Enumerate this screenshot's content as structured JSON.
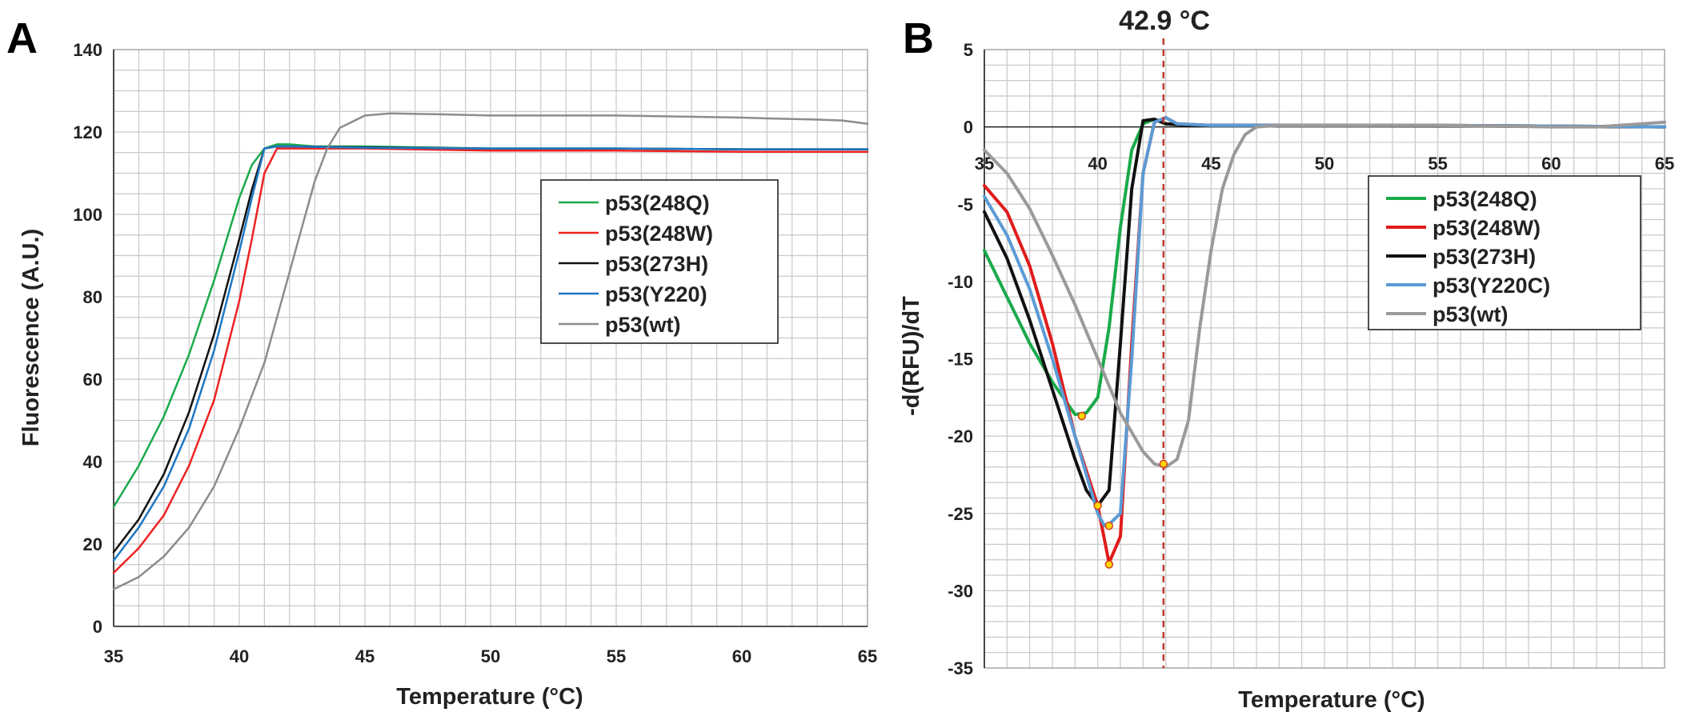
{
  "figure": {
    "panel_a_label": "A",
    "panel_b_label": "B",
    "annotation": "42.9 °C"
  },
  "chart_data": [
    {
      "type": "line",
      "panel": "A",
      "title": "",
      "xlabel": "Temperature (°C)",
      "ylabel": "Fluorescence (A.U.)",
      "xlim": [
        35,
        65
      ],
      "ylim": [
        0,
        140
      ],
      "xticks": [
        "35",
        "40",
        "45",
        "50",
        "55",
        "60",
        "65"
      ],
      "yticks": [
        "0",
        "20",
        "40",
        "60",
        "80",
        "100",
        "120",
        "140"
      ],
      "grid": true,
      "legend_position": "center-right",
      "series": [
        {
          "name": "p53(248Q)",
          "color": "#1aaa4a",
          "width": 2.5,
          "x": [
            35,
            36,
            37,
            38,
            39,
            40,
            40.5,
            41,
            41.5,
            42,
            43,
            45,
            50,
            55,
            60,
            65
          ],
          "y": [
            29,
            39,
            51,
            66,
            84,
            104,
            112,
            116,
            117,
            117,
            116.5,
            116.5,
            116,
            116,
            115.8,
            115.8
          ]
        },
        {
          "name": "p53(248W)",
          "color": "#ee2222",
          "width": 2.5,
          "x": [
            35,
            36,
            37,
            38,
            39,
            40,
            40.5,
            41,
            41.5,
            42,
            45,
            50,
            55,
            60,
            65
          ],
          "y": [
            13,
            19,
            27,
            39,
            55,
            79,
            94,
            110,
            116,
            116,
            116,
            115.5,
            115.5,
            115.2,
            115.2
          ]
        },
        {
          "name": "p53(273H)",
          "color": "#111111",
          "width": 2.5,
          "x": [
            35,
            36,
            37,
            38,
            39,
            40,
            40.5,
            41,
            41.5,
            42,
            45,
            50,
            55,
            60,
            65
          ],
          "y": [
            18,
            26,
            37,
            52,
            71,
            94,
            106,
            116,
            116.5,
            116.5,
            116.3,
            116,
            116,
            115.8,
            115.8
          ]
        },
        {
          "name": "p53(Y220)",
          "color": "#1f77c4",
          "width": 2.5,
          "x": [
            35,
            36,
            37,
            38,
            39,
            40,
            40.5,
            41,
            41.5,
            42,
            45,
            50,
            55,
            60,
            65
          ],
          "y": [
            16,
            24,
            34,
            48,
            67,
            91,
            104,
            116,
            116.5,
            116.5,
            116.2,
            116,
            116,
            115.8,
            115.8
          ]
        },
        {
          "name": "p53(wt)",
          "color": "#8c8c8c",
          "width": 2.5,
          "x": [
            35,
            36,
            37,
            38,
            39,
            40,
            40.5,
            41,
            42,
            43,
            43.5,
            44,
            45,
            46,
            48,
            50,
            55,
            60,
            61,
            63,
            64,
            65
          ],
          "y": [
            9,
            12,
            17,
            24,
            34,
            48,
            56,
            64,
            86,
            108,
            116,
            121,
            124,
            124.5,
            124.3,
            124,
            124,
            123.5,
            123.3,
            123,
            122.8,
            122
          ]
        }
      ]
    },
    {
      "type": "line",
      "panel": "B",
      "title": "",
      "xlabel": "Temperature (°C)",
      "ylabel": "-d(RFU)/dT",
      "xlim": [
        35,
        65
      ],
      "ylim": [
        -35,
        5
      ],
      "xticks": [
        "35",
        "40",
        "45",
        "50",
        "55",
        "60",
        "65"
      ],
      "yticks": [
        "-35",
        "-30",
        "-25",
        "-20",
        "-15",
        "-10",
        "-5",
        "0",
        "5"
      ],
      "grid": true,
      "legend_position": "right",
      "vline": {
        "x": 42.9,
        "color": "#c0392b"
      },
      "series": [
        {
          "name": "p53(248Q)",
          "color": "#1aaa4a",
          "width": 4,
          "x": [
            35,
            36,
            37,
            38,
            39,
            39.5,
            40,
            40.5,
            41,
            41.5,
            42,
            42.5,
            43,
            45,
            50,
            55,
            65
          ],
          "y": [
            -8,
            -11,
            -14,
            -16.5,
            -18.6,
            -18.5,
            -17.5,
            -13,
            -6.5,
            -1.5,
            0.2,
            0.5,
            0.2,
            0.1,
            0.1,
            0.1,
            0
          ]
        },
        {
          "name": "p53(248W)",
          "color": "#e01b1b",
          "width": 4,
          "x": [
            35,
            36,
            37,
            38,
            39,
            40,
            40.5,
            41,
            41.5,
            42,
            42.5,
            43,
            43.5,
            45,
            55,
            65
          ],
          "y": [
            -3.8,
            -5.5,
            -9,
            -14,
            -20,
            -24.5,
            -28.2,
            -26.5,
            -14,
            -3,
            0.3,
            0.6,
            0.2,
            0.1,
            0.1,
            0
          ]
        },
        {
          "name": "p53(273H)",
          "color": "#111111",
          "width": 4,
          "x": [
            35,
            36,
            37,
            38,
            39,
            39.5,
            40,
            40.5,
            41,
            41.5,
            42,
            42.5,
            43,
            44,
            50,
            65
          ],
          "y": [
            -5.5,
            -8.5,
            -12.5,
            -17,
            -21.5,
            -23.5,
            -24.5,
            -23.5,
            -14,
            -4,
            0.4,
            0.5,
            0.2,
            0.1,
            0.1,
            0
          ]
        },
        {
          "name": "p53(Y220C)",
          "color": "#5b9bd5",
          "width": 4,
          "x": [
            35,
            36,
            37,
            38,
            39,
            40,
            40.3,
            40.5,
            41,
            41.5,
            42,
            42.5,
            43,
            43.5,
            45,
            55,
            65
          ],
          "y": [
            -4.5,
            -7,
            -10.5,
            -15,
            -20,
            -25,
            -25.8,
            -25.7,
            -25,
            -15,
            -3,
            0.3,
            0.6,
            0.2,
            0.1,
            0.1,
            0
          ]
        },
        {
          "name": "p53(wt)",
          "color": "#9a9a9a",
          "width": 4,
          "x": [
            35,
            36,
            37,
            38,
            39,
            40,
            41,
            42,
            42.5,
            43,
            43.5,
            44,
            44.5,
            45,
            45.5,
            46,
            46.5,
            47,
            48,
            50,
            55,
            60,
            62,
            65
          ],
          "y": [
            -1.5,
            -3,
            -5.3,
            -8.3,
            -11.5,
            -15,
            -18.5,
            -21,
            -21.8,
            -22,
            -21.5,
            -19,
            -13,
            -8,
            -4,
            -1.8,
            -0.5,
            0,
            0.1,
            0.1,
            0.1,
            0,
            0,
            0.3
          ]
        }
      ],
      "markers": [
        {
          "x": 39.3,
          "y": -18.7
        },
        {
          "x": 40,
          "y": -24.5
        },
        {
          "x": 40.5,
          "y": -25.8
        },
        {
          "x": 40.5,
          "y": -28.3
        },
        {
          "x": 42.9,
          "y": -21.8
        }
      ]
    }
  ]
}
